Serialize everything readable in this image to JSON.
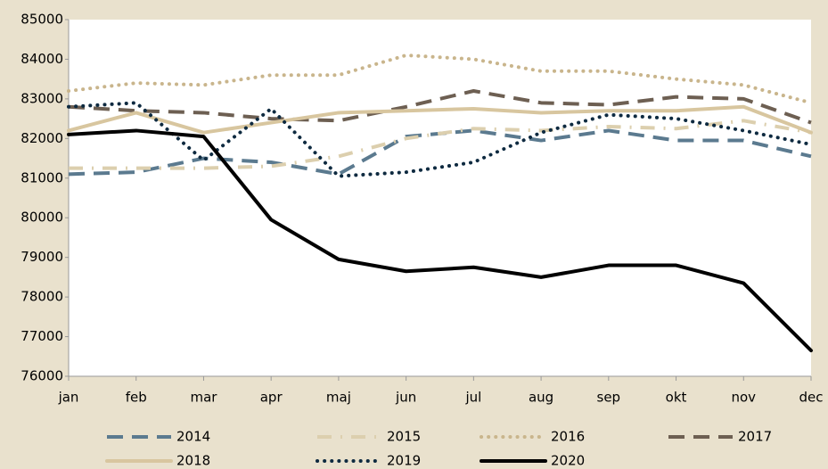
{
  "chart_data": {
    "type": "line",
    "categories": [
      "jan",
      "feb",
      "mar",
      "apr",
      "maj",
      "jun",
      "jul",
      "aug",
      "sep",
      "okt",
      "nov",
      "dec"
    ],
    "ylim": [
      76000,
      85000
    ],
    "yticks": [
      76000,
      77000,
      78000,
      79000,
      80000,
      81000,
      82000,
      83000,
      84000,
      85000
    ],
    "grid": false,
    "legend": "bottom",
    "series": [
      {
        "name": "2014",
        "color": "#5b7a8f",
        "linestyle": "dashed",
        "values": [
          81100,
          81150,
          81500,
          81400,
          81100,
          82050,
          82200,
          81950,
          82200,
          81950,
          81950,
          81550
        ]
      },
      {
        "name": "2015",
        "color": "#dccfae",
        "linestyle": "dashdot",
        "values": [
          81250,
          81250,
          81250,
          81300,
          81550,
          82000,
          82250,
          82200,
          82300,
          82250,
          82450,
          82150
        ]
      },
      {
        "name": "2016",
        "color": "#c9b58c",
        "linestyle": "dotted",
        "values": [
          83200,
          83400,
          83350,
          83600,
          83600,
          84100,
          84000,
          83700,
          83700,
          83500,
          83350,
          82900
        ]
      },
      {
        "name": "2017",
        "color": "#6d5f52",
        "linestyle": "dashed",
        "values": [
          82800,
          82700,
          82650,
          82500,
          82450,
          82800,
          83200,
          82900,
          82850,
          83050,
          83000,
          82400
        ]
      },
      {
        "name": "2018",
        "color": "#d8c69f",
        "linestyle": "solid",
        "values": [
          82200,
          82650,
          82150,
          82400,
          82650,
          82700,
          82750,
          82650,
          82700,
          82700,
          82800,
          82150
        ]
      },
      {
        "name": "2019",
        "color": "#0e2a40",
        "linestyle": "dotted",
        "values": [
          82800,
          82900,
          81450,
          82750,
          81050,
          81150,
          81400,
          82150,
          82600,
          82500,
          82200,
          81850
        ]
      },
      {
        "name": "2020",
        "color": "#000000",
        "linestyle": "solid",
        "values": [
          82100,
          82200,
          82050,
          79950,
          78950,
          78650,
          78750,
          78500,
          78800,
          78800,
          78350,
          76650
        ]
      }
    ]
  }
}
